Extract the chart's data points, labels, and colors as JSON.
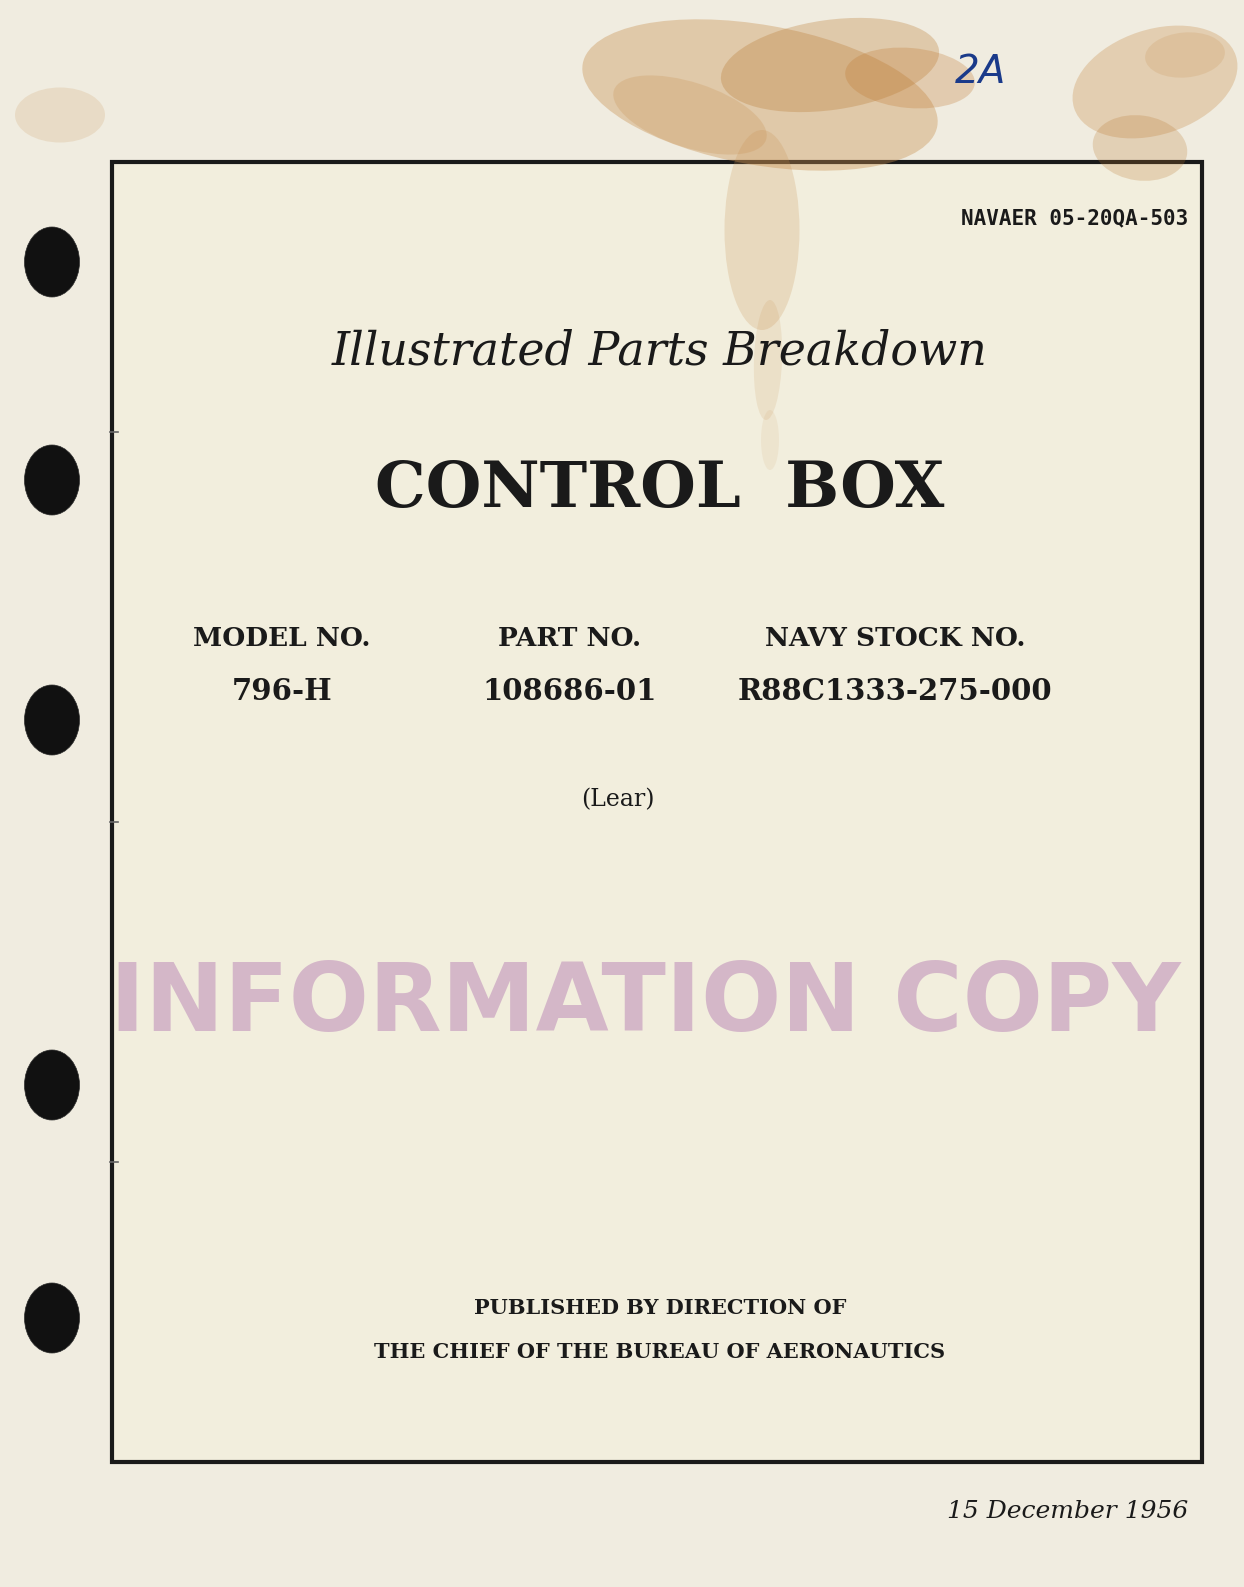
{
  "bg_color": "#ede8d8",
  "page_bg_color": "#f0ece0",
  "inner_bg_color": "#f2eedd",
  "border_color": "#1a1a1a",
  "handwritten_2a": "2A",
  "handwritten_color": "#1a3a8a",
  "navaer_text": "NAVAER 05-20QA-503",
  "title1": "Illustrated Parts Breakdown",
  "title2": "CONTROL  BOX",
  "label_model": "MODEL NO.",
  "label_part": "PART NO.",
  "label_navy": "NAVY STOCK NO.",
  "value_model": "796-H",
  "value_part": "108686-01",
  "value_navy": "R88C1333-275-000",
  "lear_text": "(Lear)",
  "stamp_text": "INFORMATION COPY",
  "stamp_color": "#c8a0c0",
  "published_line1": "PUBLISHED BY DIRECTION OF",
  "published_line2": "THE CHIEF OF THE BUREAU OF AERONAUTICS",
  "date_text": "15 December 1956",
  "punch_hole_color": "#111111",
  "text_color": "#1a1a1a"
}
